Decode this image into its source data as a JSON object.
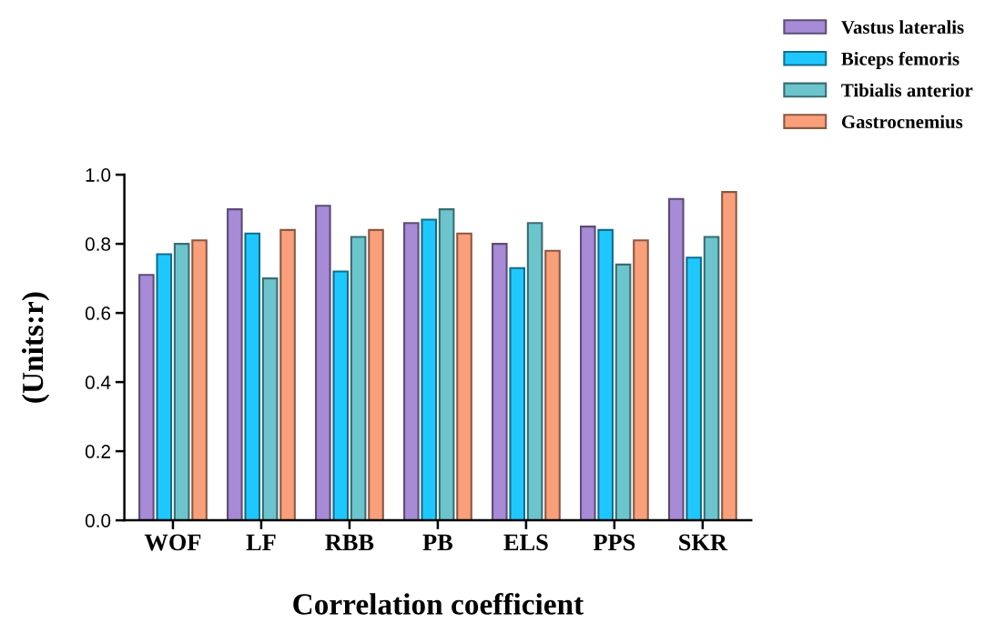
{
  "chart_data": {
    "type": "bar",
    "xlabel": "Correlation coefficient",
    "ylabel": "(Units:r)",
    "categories": [
      "WOF",
      "LF",
      "RBB",
      "PB",
      "ELS",
      "PPS",
      "SKR"
    ],
    "series": [
      {
        "name": "Vastus lateralis",
        "color": "#a78bd6",
        "values": [
          0.71,
          0.9,
          0.91,
          0.86,
          0.8,
          0.85,
          0.93
        ]
      },
      {
        "name": "Biceps femoris",
        "color": "#1ec8ff",
        "values": [
          0.77,
          0.83,
          0.72,
          0.87,
          0.73,
          0.84,
          0.76
        ]
      },
      {
        "name": "Tibialis anterior",
        "color": "#6cc5cc",
        "values": [
          0.8,
          0.7,
          0.82,
          0.9,
          0.86,
          0.74,
          0.82
        ]
      },
      {
        "name": "Gastrocnemius",
        "color": "#f9a07a",
        "values": [
          0.81,
          0.84,
          0.84,
          0.83,
          0.78,
          0.81,
          0.95
        ]
      }
    ],
    "ylim": [
      0,
      1.0
    ],
    "yticks": [
      {
        "value": 0,
        "label": "0.0"
      },
      {
        "value": 0.2,
        "label": "0.2"
      },
      {
        "value": 0.4,
        "label": "0.4"
      },
      {
        "value": 0.6,
        "label": "0.6"
      },
      {
        "value": 0.8,
        "label": "0.8"
      },
      {
        "value": 1.0,
        "label": "1.0"
      }
    ],
    "grid": false,
    "legend": "top right"
  }
}
